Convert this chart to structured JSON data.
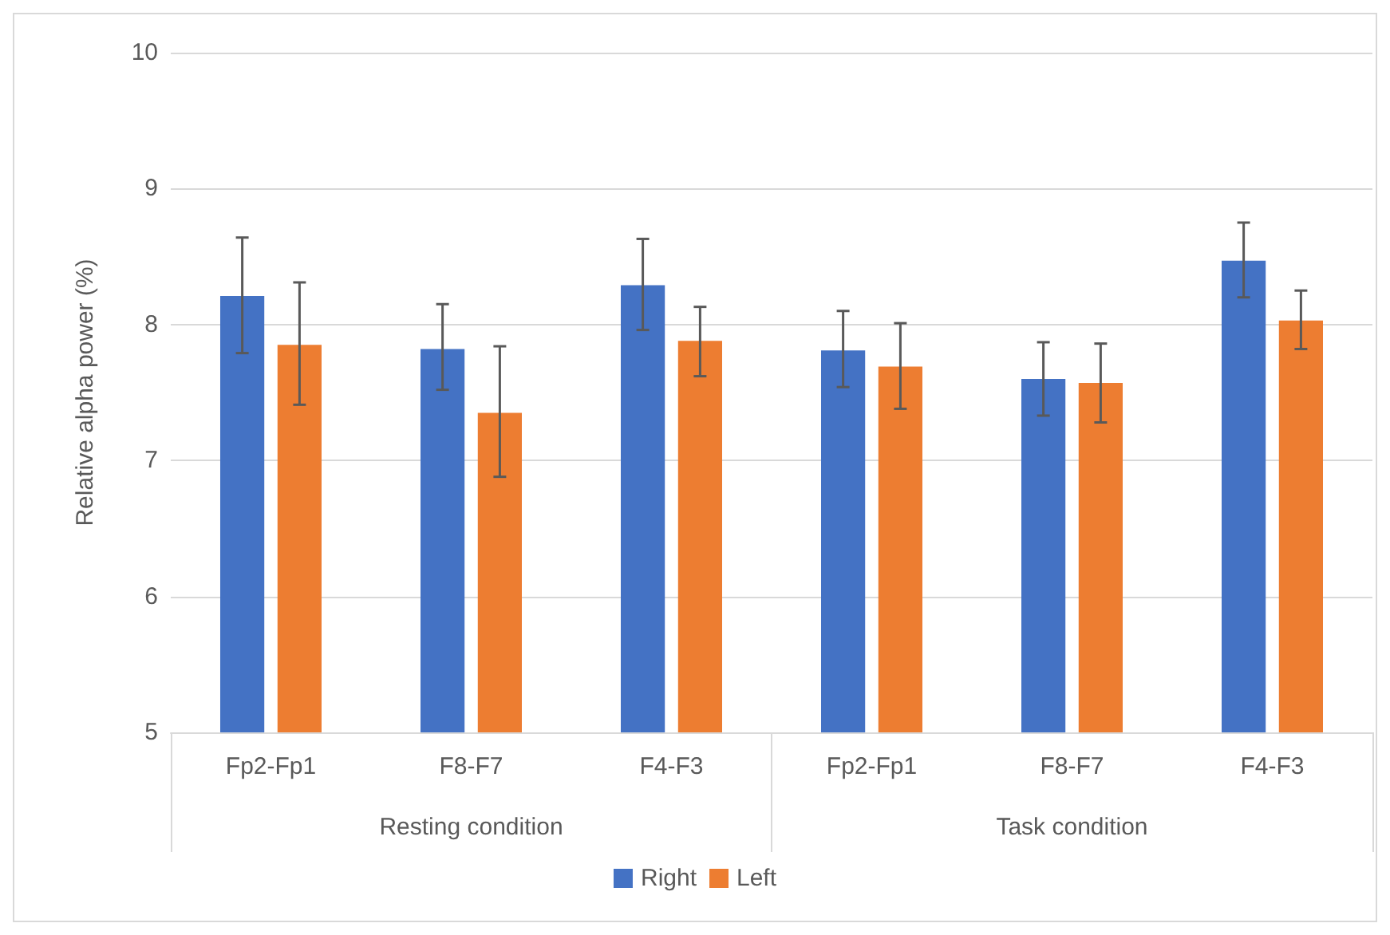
{
  "chart_data": {
    "type": "bar",
    "ylabel": "Relative alpha power (%)",
    "categories": [
      "Fp2-Fp1",
      "F8-F7",
      "F4-F3",
      "Fp2-Fp1",
      "F8-F7",
      "F4-F3"
    ],
    "annotations": [
      "Resting condition",
      "Task condition"
    ],
    "series": [
      {
        "name": "Right",
        "color": "#4472c4",
        "values": [
          8.21,
          7.82,
          8.29,
          7.81,
          7.6,
          8.47
        ],
        "errors": [
          [
            7.79,
            8.64
          ],
          [
            7.52,
            8.15
          ],
          [
            7.96,
            8.63
          ],
          [
            7.54,
            8.1
          ],
          [
            7.33,
            7.87
          ],
          [
            8.2,
            8.75
          ]
        ]
      },
      {
        "name": "Left",
        "color": "#ed7d31",
        "values": [
          7.85,
          7.35,
          7.88,
          7.69,
          7.57,
          8.03
        ],
        "errors": [
          [
            7.41,
            8.31
          ],
          [
            6.88,
            7.84
          ],
          [
            7.62,
            8.13
          ],
          [
            7.38,
            8.01
          ],
          [
            7.28,
            7.86
          ],
          [
            7.82,
            8.25
          ]
        ]
      }
    ],
    "ylim": [
      5,
      10
    ],
    "yticks": [
      5,
      6,
      7,
      8,
      9,
      10
    ],
    "grid": "y",
    "legend": "bottom"
  }
}
